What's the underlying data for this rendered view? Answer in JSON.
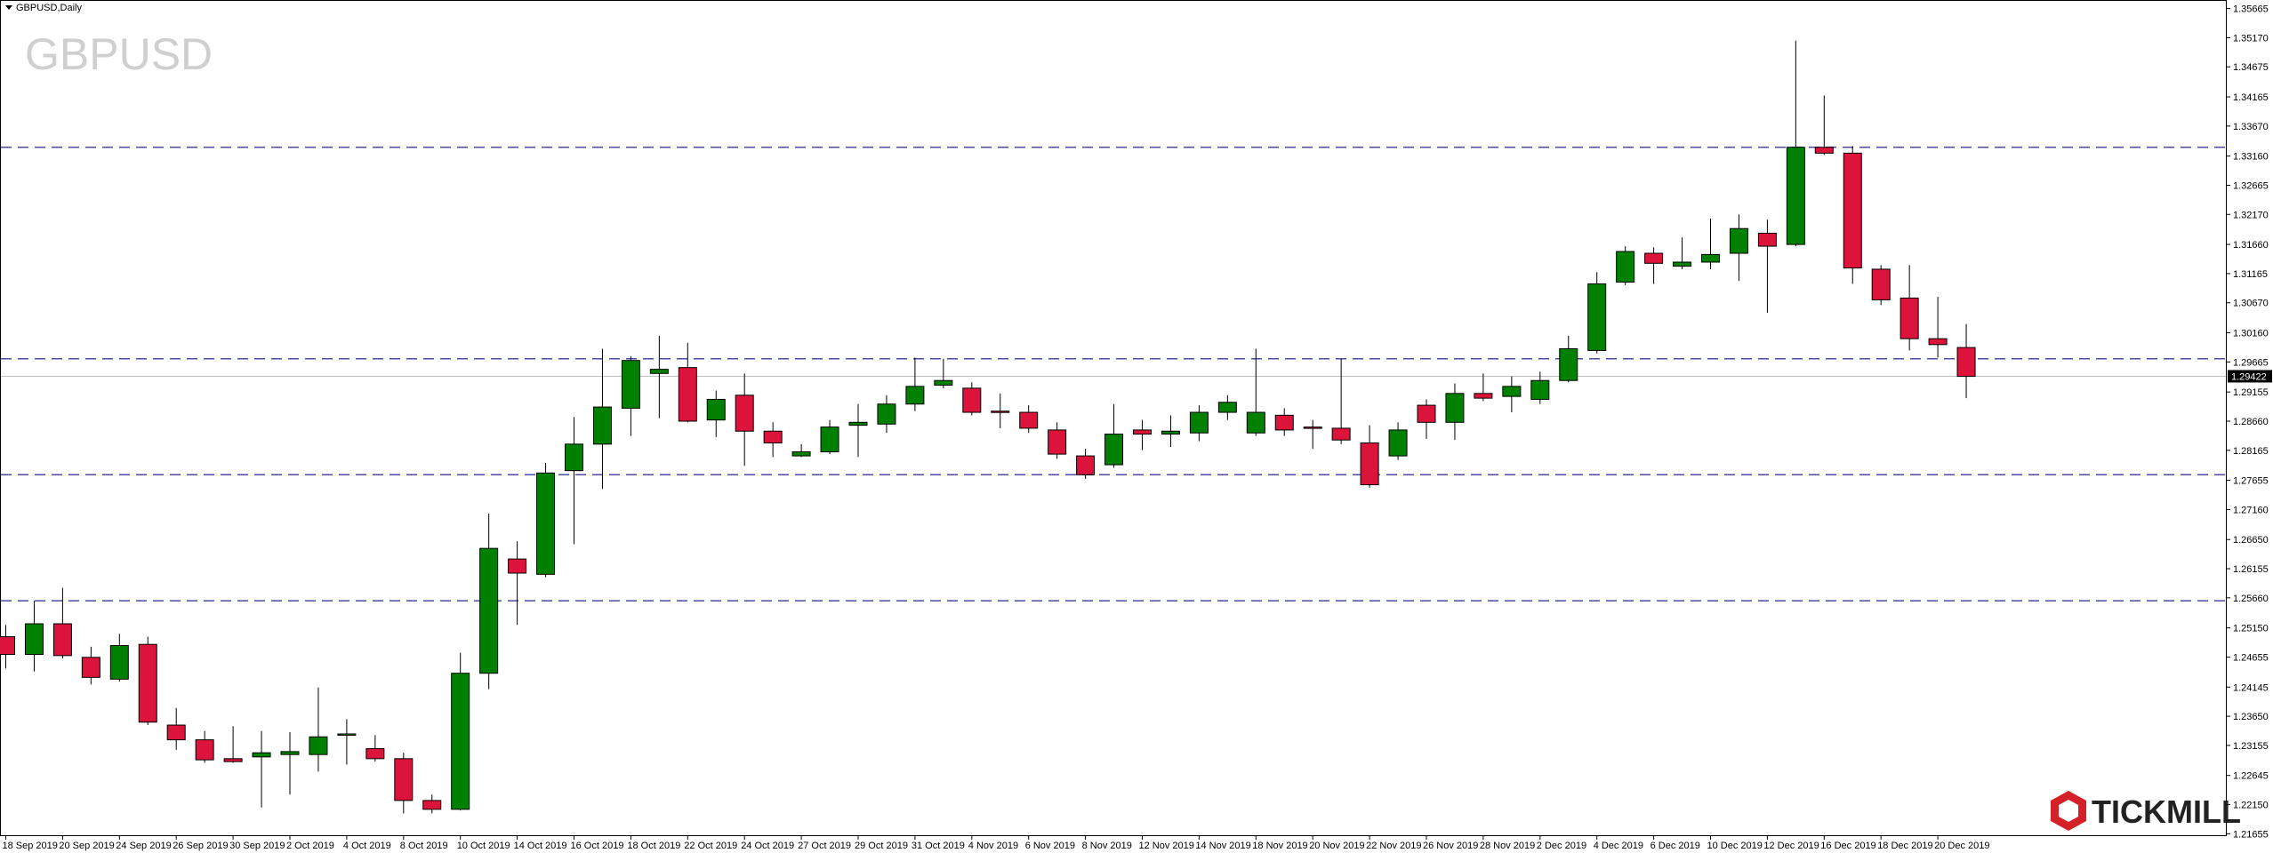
{
  "chart_data": {
    "type": "candlestick",
    "title": "GBPUSD,Daily",
    "watermark": "GBPUSD",
    "categories": [
      "18 Sep 2019",
      null,
      "20 Sep 2019",
      null,
      "24 Sep 2019",
      null,
      "26 Sep 2019",
      null,
      "30 Sep 2019",
      null,
      "2 Oct 2019",
      null,
      "4 Oct 2019",
      null,
      "8 Oct 2019",
      null,
      "10 Oct 2019",
      null,
      "14 Oct 2019",
      null,
      "16 Oct 2019",
      null,
      "18 Oct 2019",
      null,
      "22 Oct 2019",
      null,
      "24 Oct 2019",
      null,
      "27 Oct 2019",
      null,
      "29 Oct 2019",
      null,
      "31 Oct 2019",
      null,
      "4 Nov 2019",
      null,
      "6 Nov 2019",
      null,
      "8 Nov 2019",
      null,
      "12 Nov 2019",
      null,
      "14 Nov 2019",
      null,
      "18 Nov 2019",
      null,
      "20 Nov 2019",
      null,
      "22 Nov 2019",
      null,
      "26 Nov 2019",
      null,
      "28 Nov 2019",
      null,
      "2 Dec 2019",
      null,
      "4 Dec 2019",
      null,
      "6 Dec 2019",
      null,
      "10 Dec 2019",
      null,
      "12 Dec 2019",
      null,
      "16 Dec 2019",
      null,
      "18 Dec 2019",
      null,
      "20 Dec 2019",
      null
    ],
    "open": [
      1.25,
      1.247,
      1.2522,
      1.2465,
      1.2428,
      1.2487,
      1.235,
      1.2325,
      1.2293,
      1.2296,
      1.23,
      1.23,
      1.2333,
      1.231,
      1.2293,
      1.2222,
      1.2207,
      1.2438,
      1.2632,
      1.2606,
      1.2782,
      1.2827,
      1.2888,
      1.2947,
      1.2957,
      1.2868,
      1.291,
      1.2849,
      1.2807,
      1.2814,
      1.2859,
      1.2861,
      1.2895,
      1.2927,
      1.2922,
      1.2883,
      1.2881,
      1.2851,
      1.2807,
      1.2792,
      1.2851,
      1.2844,
      1.2846,
      1.2881,
      1.2846,
      1.2876,
      1.2856,
      1.2854,
      1.2829,
      1.2807,
      1.2893,
      1.2864,
      1.2913,
      1.2908,
      1.2903,
      1.2935,
      1.2986,
      1.3102,
      1.3151,
      1.3129,
      1.3136,
      1.3151,
      1.3185,
      1.3166,
      1.3331,
      1.3321,
      1.3124,
      1.3075,
      1.3006,
      1.2991
    ],
    "high": [
      1.252,
      1.2561,
      1.2583,
      1.2483,
      1.2505,
      1.25,
      1.2379,
      1.234,
      1.2348,
      1.234,
      1.2338,
      1.2414,
      1.236,
      1.2333,
      1.2303,
      1.2232,
      1.2473,
      1.2709,
      1.2662,
      1.2795,
      1.2873,
      1.2989,
      1.2976,
      1.3011,
      1.2999,
      1.2918,
      1.2947,
      1.2864,
      1.2827,
      1.2868,
      1.2895,
      1.291,
      1.2974,
      1.2972,
      1.2932,
      1.2913,
      1.2893,
      1.2864,
      1.2819,
      1.2895,
      1.2868,
      1.2876,
      1.2893,
      1.291,
      1.2989,
      1.2888,
      1.2868,
      1.2972,
      1.2859,
      1.2864,
      1.2903,
      1.293,
      1.2947,
      1.2942,
      1.295,
      1.3011,
      1.3119,
      1.3163,
      1.3161,
      1.3178,
      1.321,
      1.3217,
      1.3208,
      1.3512,
      1.3419,
      1.3333,
      1.3131,
      1.3131,
      1.3077,
      1.3031
    ],
    "low": [
      1.2446,
      1.2441,
      1.2463,
      1.2419,
      1.2424,
      1.235,
      1.2308,
      1.2286,
      1.2286,
      1.221,
      1.2232,
      1.2271,
      1.2283,
      1.2288,
      1.22,
      1.22,
      1.2205,
      1.2411,
      1.252,
      1.2601,
      1.2657,
      1.2751,
      1.2841,
      1.2871,
      1.2864,
      1.2839,
      1.279,
      1.2805,
      1.2805,
      1.281,
      1.2805,
      1.2846,
      1.2883,
      1.2922,
      1.2876,
      1.2854,
      1.2846,
      1.2802,
      1.2768,
      1.2787,
      1.2817,
      1.2822,
      1.2832,
      1.2868,
      1.2841,
      1.2841,
      1.2819,
      1.2827,
      1.2753,
      1.28,
      1.2836,
      1.2834,
      1.29,
      1.2881,
      1.2895,
      1.2932,
      1.2981,
      1.3097,
      1.3099,
      1.3124,
      1.3124,
      1.3104,
      1.305,
      1.3163,
      1.3318,
      1.3099,
      1.3063,
      1.2986,
      1.2974,
      1.2905
    ],
    "close": [
      1.247,
      1.2522,
      1.2468,
      1.2431,
      1.2485,
      1.2355,
      1.2325,
      1.2291,
      1.2288,
      1.2303,
      1.2305,
      1.233,
      1.2335,
      1.2293,
      1.2222,
      1.2207,
      1.2438,
      1.265,
      1.2608,
      1.2778,
      1.2827,
      1.289,
      1.2969,
      1.2954,
      1.2866,
      1.2903,
      1.2849,
      1.2829,
      1.2814,
      1.2856,
      1.2864,
      1.2895,
      1.2925,
      1.2935,
      1.2881,
      1.2881,
      1.2854,
      1.281,
      1.2775,
      1.2844,
      1.2844,
      1.2849,
      1.2881,
      1.2898,
      1.2881,
      1.2851,
      1.2854,
      1.2834,
      1.2758,
      1.2851,
      1.2864,
      1.2913,
      1.2905,
      1.2925,
      1.2935,
      1.2989,
      1.3099,
      1.3154,
      1.3134,
      1.3136,
      1.3149,
      1.3193,
      1.3163,
      1.3331,
      1.3321,
      1.3126,
      1.3072,
      1.3006,
      1.2996,
      1.2942
    ],
    "up_color": "#008000",
    "down_color": "#dc143c",
    "levels": [
      1.3331,
      1.2972,
      1.2775,
      1.2561
    ],
    "level_color": "#4b4ba0",
    "current_price": 1.29422,
    "ylim": [
      1.2163,
      1.3581
    ],
    "yticks": [
      1.21655,
      {
        "value": 1.2215,
        "label": "1.22150"
      },
      1.22645,
      1.23155,
      {
        "value": 1.2365,
        "label": "1.23650"
      },
      1.24145,
      1.24655,
      {
        "value": 1.2515,
        "label": "1.25150"
      },
      {
        "value": 1.2566,
        "label": "1.25660"
      },
      1.26155,
      {
        "value": 1.2665,
        "label": "1.26650"
      },
      {
        "value": 1.2716,
        "label": "1.27160"
      },
      1.27655,
      1.28165,
      {
        "value": 1.2866,
        "label": "1.28660"
      },
      1.29155,
      1.29665,
      {
        "value": 1.3016,
        "label": "1.30160"
      },
      {
        "value": 1.3067,
        "label": "1.30670"
      },
      1.31165,
      {
        "value": 1.3166,
        "label": "1.31660"
      },
      {
        "value": 1.3217,
        "label": "1.32170"
      },
      1.32665,
      {
        "value": 1.3316,
        "label": "1.33160"
      },
      {
        "value": 1.3367,
        "label": "1.33670"
      },
      1.34165,
      1.34675,
      {
        "value": 1.3517,
        "label": "1.35170"
      },
      1.35665
    ]
  },
  "brand": "TICKMILL"
}
